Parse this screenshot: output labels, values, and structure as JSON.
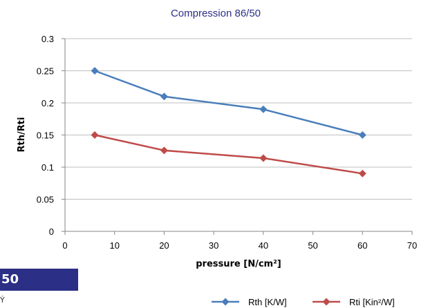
{
  "page_fragments": {
    "badge_text": "50",
    "fragment_text": "Ý"
  },
  "chart_data": {
    "type": "line",
    "title": "Compression 86/50",
    "xlabel": "pressure [N/cm²]",
    "ylabel": "Rth/Rti",
    "xlim": [
      0,
      70
    ],
    "ylim": [
      0,
      0.3
    ],
    "xticks": [
      "0",
      "10",
      "20",
      "30",
      "40",
      "50",
      "60",
      "70"
    ],
    "yticks": [
      "0",
      "0.05",
      "0.1",
      "0.15",
      "0.2",
      "0.25",
      "0.3"
    ],
    "grid": "horizontal",
    "legend_position": "bottom-right",
    "colors": {
      "title": "#2b2f86",
      "grid": "#bfbfbf",
      "axis": "#868686"
    },
    "series": [
      {
        "name": "Rth [K/W]",
        "color": "#4a7ebb",
        "marker": "diamond",
        "x": [
          6,
          20,
          40,
          60
        ],
        "y": [
          0.25,
          0.21,
          0.19,
          0.15
        ]
      },
      {
        "name": "Rti [Kin²/W]",
        "color": "#be4b48",
        "marker": "diamond",
        "x": [
          6,
          20,
          40,
          60
        ],
        "y": [
          0.15,
          0.126,
          0.114,
          0.09
        ]
      }
    ]
  }
}
